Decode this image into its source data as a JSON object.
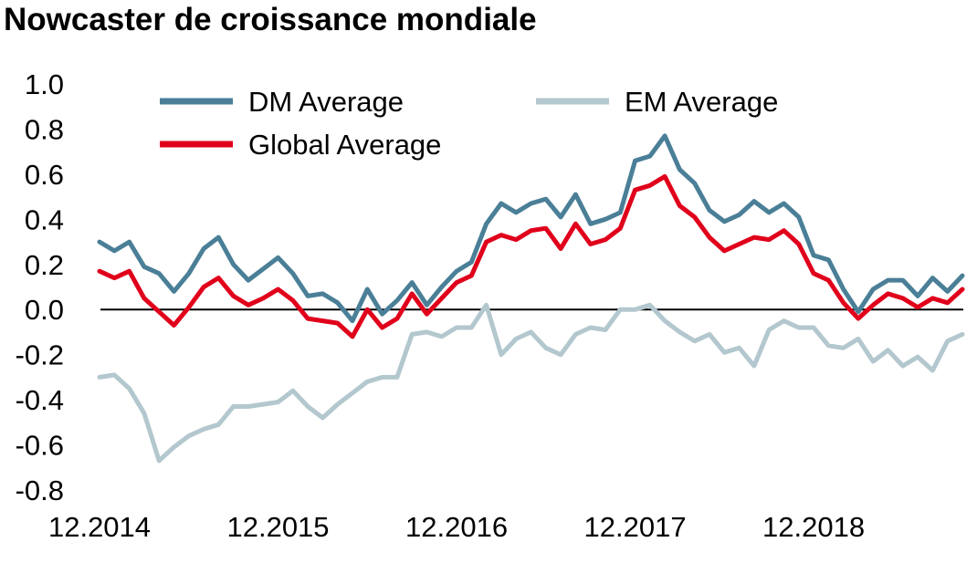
{
  "chart_data": {
    "type": "line",
    "title": "Nowcaster de croissance mondiale",
    "xlabel": "",
    "ylabel": "",
    "ylim": [
      -0.8,
      1.0
    ],
    "yticks": [
      "1.0",
      "0.8",
      "0.6",
      "0.4",
      "0.2",
      "0.0",
      "-0.2",
      "-0.4",
      "-0.6",
      "-0.8"
    ],
    "xticks": [
      "12.2014",
      "12.2015",
      "12.2016",
      "12.2017",
      "12.2018"
    ],
    "x_start": "12.2014",
    "x_frequency": "monthly",
    "grid": false,
    "zero_line": true,
    "legend_position": "top",
    "series": [
      {
        "name": "DM Average",
        "color": "#4a7f97",
        "values": [
          0.3,
          0.26,
          0.3,
          0.19,
          0.16,
          0.08,
          0.16,
          0.27,
          0.32,
          0.2,
          0.13,
          0.18,
          0.23,
          0.16,
          0.06,
          0.07,
          0.03,
          -0.05,
          0.09,
          -0.02,
          0.04,
          0.12,
          0.02,
          0.1,
          0.17,
          0.21,
          0.38,
          0.47,
          0.43,
          0.47,
          0.49,
          0.41,
          0.51,
          0.38,
          0.4,
          0.43,
          0.66,
          0.68,
          0.77,
          0.62,
          0.56,
          0.44,
          0.39,
          0.42,
          0.48,
          0.43,
          0.47,
          0.41,
          0.24,
          0.22,
          0.09,
          -0.01,
          0.09,
          0.13,
          0.13,
          0.06,
          0.14,
          0.08,
          0.15
        ]
      },
      {
        "name": "EM Average",
        "color": "#b3c7ce",
        "values": [
          -0.3,
          -0.29,
          -0.35,
          -0.46,
          -0.67,
          -0.61,
          -0.56,
          -0.53,
          -0.51,
          -0.43,
          -0.43,
          -0.42,
          -0.41,
          -0.36,
          -0.43,
          -0.48,
          -0.42,
          -0.37,
          -0.32,
          -0.3,
          -0.3,
          -0.11,
          -0.1,
          -0.12,
          -0.08,
          -0.08,
          0.02,
          -0.2,
          -0.13,
          -0.1,
          -0.17,
          -0.2,
          -0.11,
          -0.08,
          -0.09,
          0.0,
          0.0,
          0.02,
          -0.05,
          -0.1,
          -0.14,
          -0.11,
          -0.19,
          -0.17,
          -0.25,
          -0.09,
          -0.05,
          -0.08,
          -0.08,
          -0.16,
          -0.17,
          -0.13,
          -0.23,
          -0.18,
          -0.25,
          -0.21,
          -0.27,
          -0.14,
          -0.11
        ]
      },
      {
        "name": "Global Average",
        "color": "#e0001b",
        "values": [
          0.17,
          0.14,
          0.17,
          0.05,
          -0.01,
          -0.07,
          0.01,
          0.1,
          0.14,
          0.06,
          0.02,
          0.05,
          0.09,
          0.04,
          -0.04,
          -0.05,
          -0.06,
          -0.12,
          0.0,
          -0.08,
          -0.04,
          0.07,
          -0.02,
          0.05,
          0.12,
          0.15,
          0.3,
          0.33,
          0.31,
          0.35,
          0.36,
          0.27,
          0.38,
          0.29,
          0.31,
          0.36,
          0.53,
          0.55,
          0.59,
          0.46,
          0.41,
          0.32,
          0.26,
          0.29,
          0.32,
          0.31,
          0.35,
          0.29,
          0.16,
          0.13,
          0.03,
          -0.04,
          0.02,
          0.07,
          0.05,
          0.01,
          0.05,
          0.03,
          0.09
        ]
      }
    ]
  }
}
